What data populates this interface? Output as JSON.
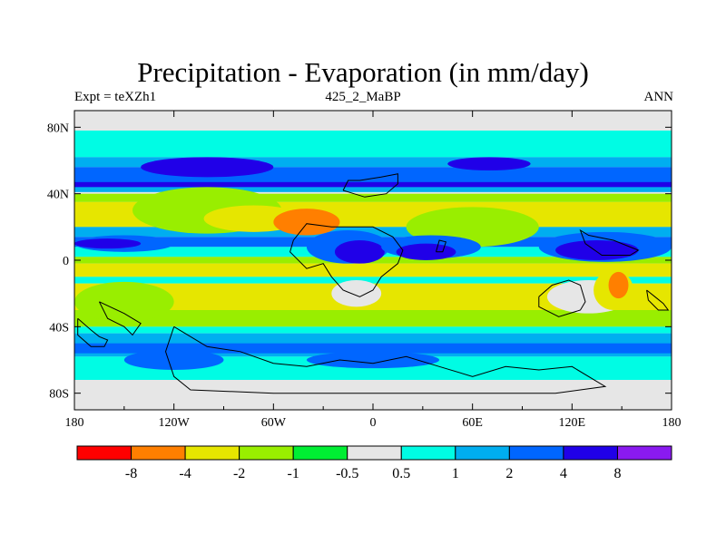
{
  "title": "Precipitation - Evaporation (in mm/day)",
  "subtitle_left": "Expt = teXZh1",
  "subtitle_center": "425_2_MaBP",
  "subtitle_right": "ANN",
  "chart_data": {
    "type": "heatmap",
    "x_ticks": [
      "180",
      "120W",
      "60W",
      "0",
      "60E",
      "120E",
      "180"
    ],
    "y_ticks": [
      "80N",
      "40N",
      "0",
      "40S",
      "80S"
    ],
    "xlim": [
      -180,
      180
    ],
    "ylim": [
      -90,
      90
    ],
    "colorbar": {
      "labels": [
        "-8",
        "-4",
        "-2",
        "-1",
        "-0.5",
        "0.5",
        "1",
        "2",
        "4",
        "8"
      ],
      "colors": [
        "#ff0000",
        "#ff7f00",
        "#e6e600",
        "#99ee00",
        "#00ee33",
        "#e6e6e6",
        "#00fce4",
        "#00aef0",
        "#0066ff",
        "#2000e8",
        "#8a1af0"
      ]
    },
    "palette": {
      "wet_extreme": "#8a1af0",
      "very_wet": "#2000e8",
      "wet": "#0066ff",
      "moist": "#00aef0",
      "slight_wet": "#00fce4",
      "neutral": "#e6e6e6",
      "slight_dry": "#00ee33",
      "dry1": "#99ee00",
      "dry2": "#e6e600",
      "dry4": "#ff7f00",
      "dry8": "#ff0000"
    }
  }
}
